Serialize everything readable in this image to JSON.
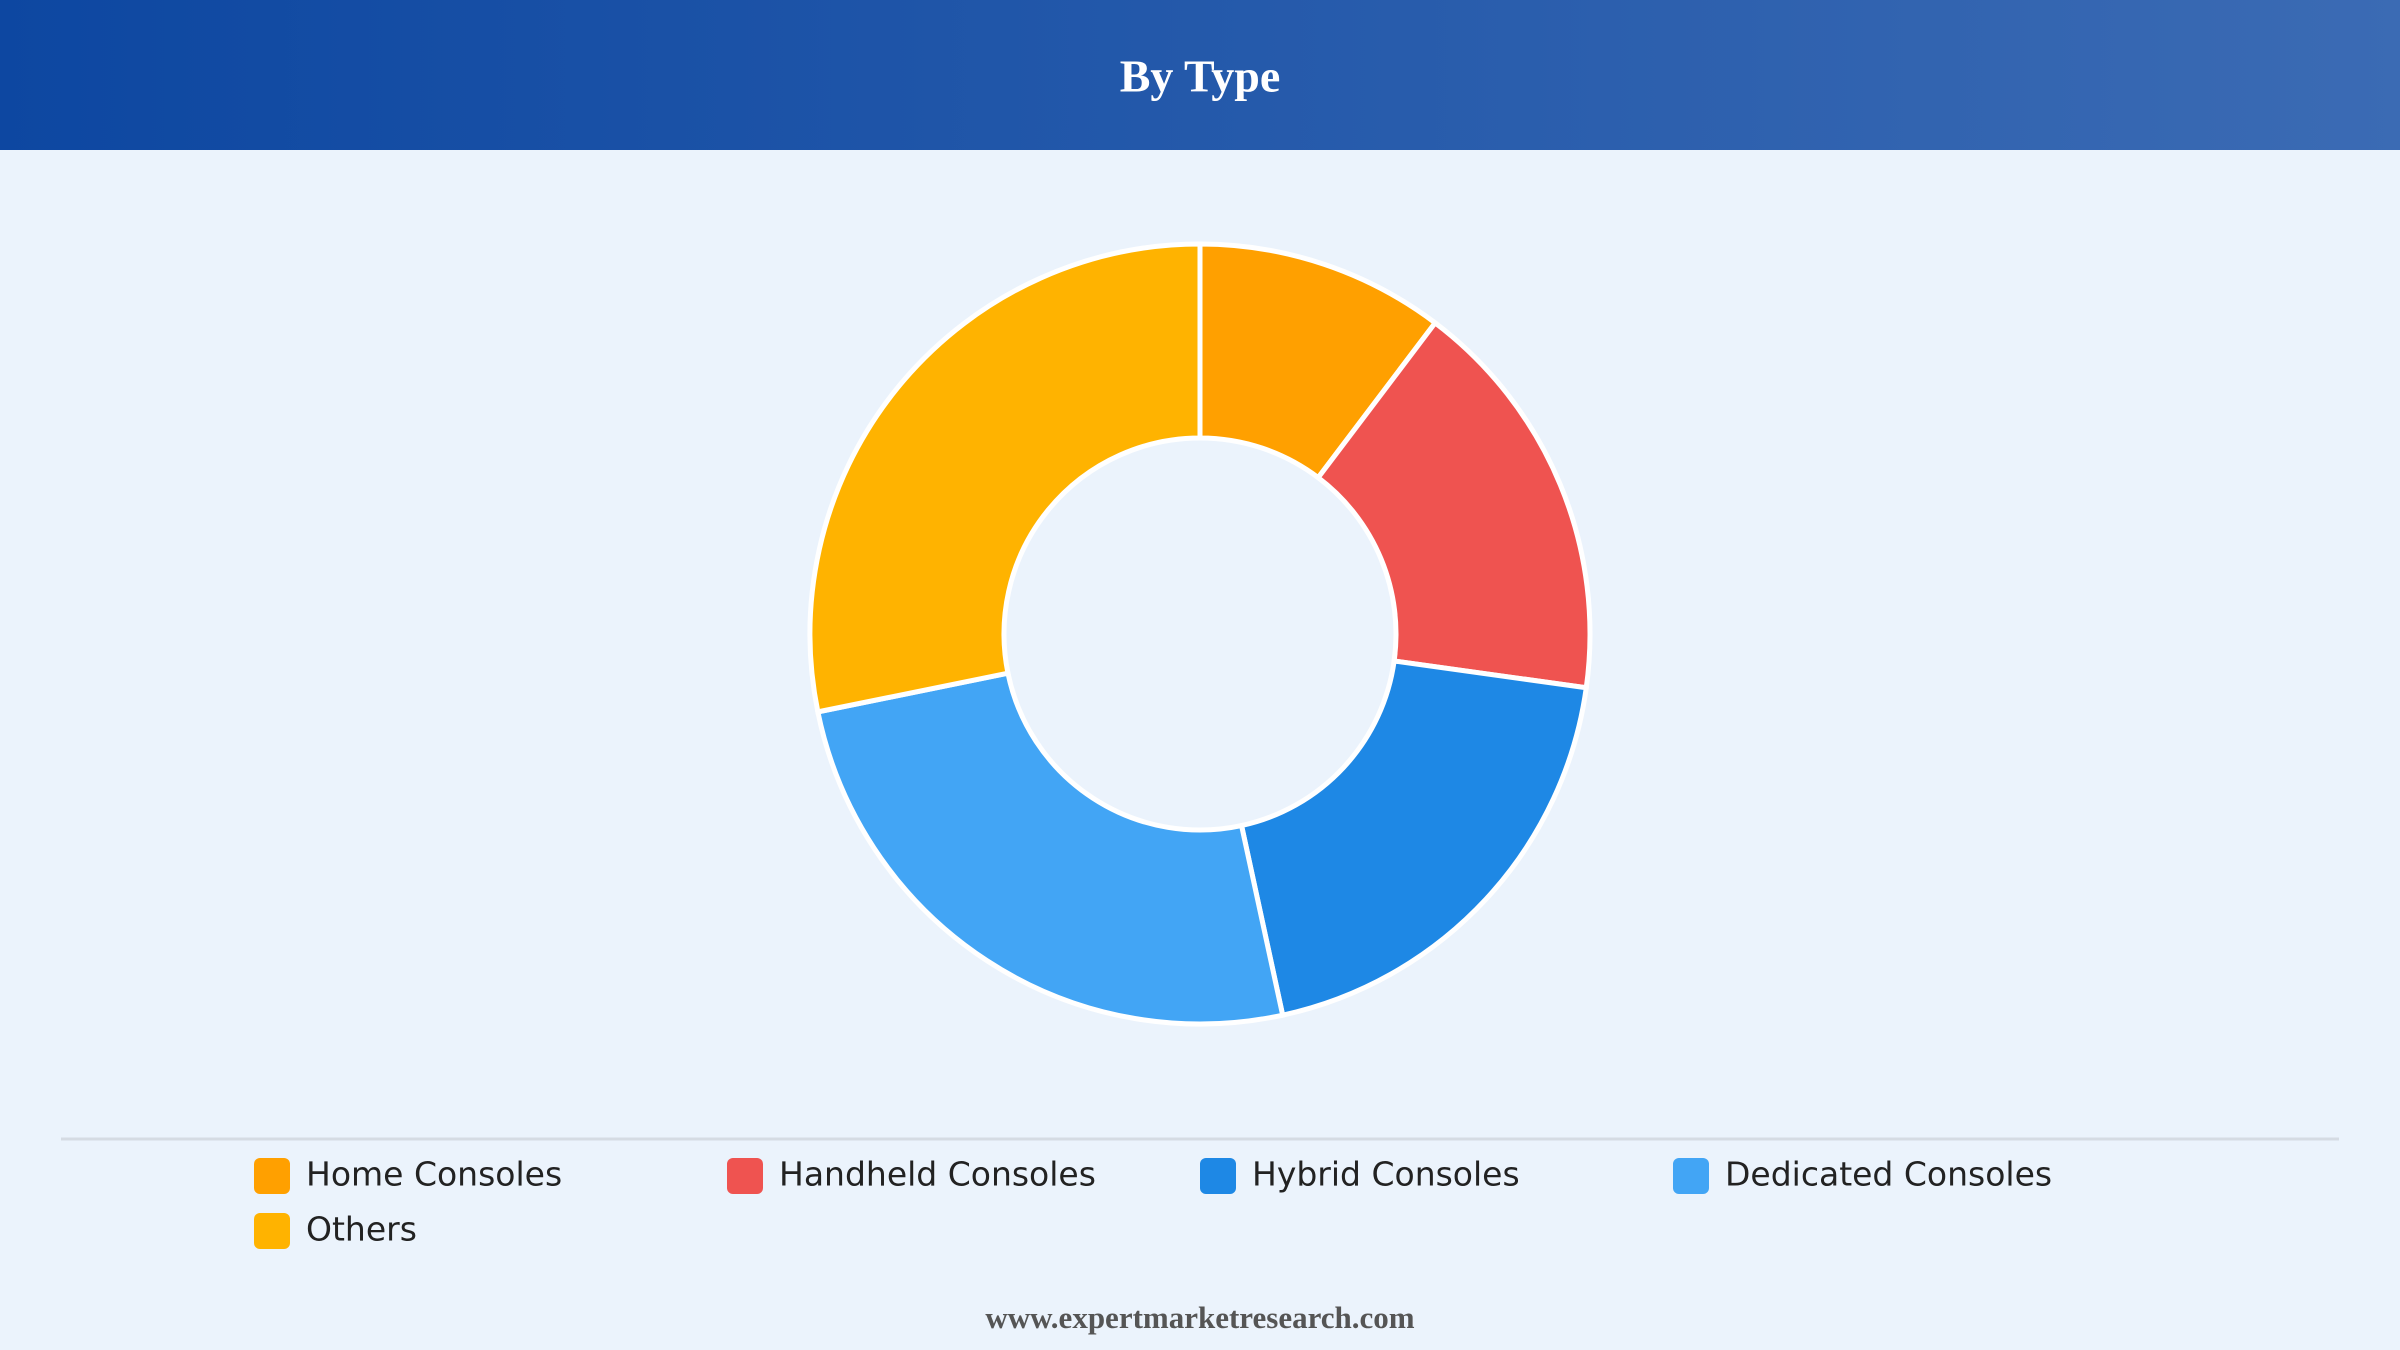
{
  "chart_data": {
    "type": "donut",
    "title": "By Type",
    "categories": [
      "Home Consoles",
      "Handheld Consoles",
      "Hybrid Consoles",
      "Dedicated Consoles",
      "Others"
    ],
    "values": [
      10.3,
      16.9,
      19.4,
      25.2,
      28.2
    ],
    "colors": [
      "#ffa000",
      "#ef5350",
      "#1e88e5",
      "#42a5f5",
      "#ffb300"
    ],
    "legend": "bottom"
  },
  "footer": "www.expertmarketresearch.com"
}
